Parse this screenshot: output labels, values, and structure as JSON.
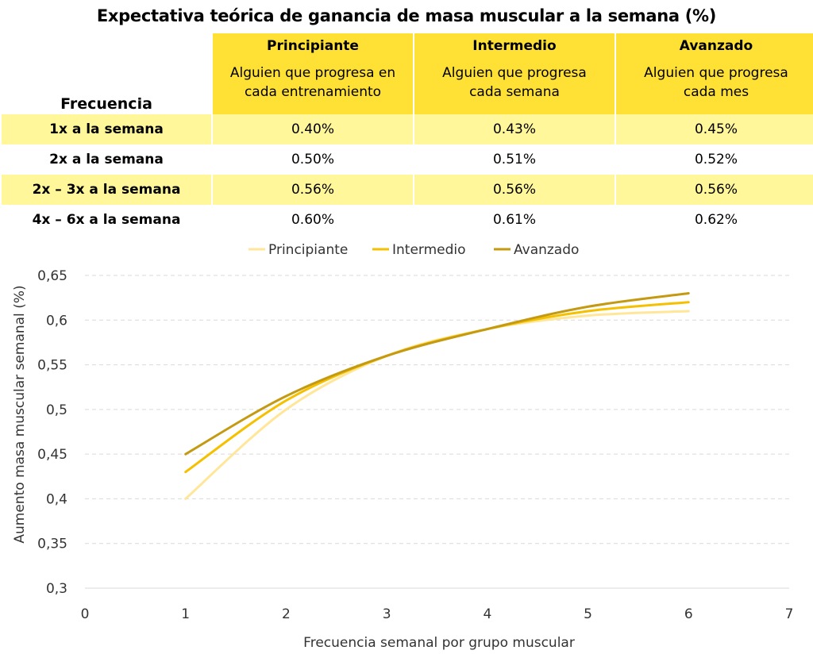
{
  "title": "Expectativa teórica de ganancia de masa muscular a la semana (%)",
  "table": {
    "corner": "Frecuencia",
    "levels": [
      {
        "name": "Principiante",
        "desc1": "Alguien que progresa en",
        "desc2": "cada entrenamiento"
      },
      {
        "name": "Intermedio",
        "desc1": "Alguien que progresa",
        "desc2": "cada semana"
      },
      {
        "name": "Avanzado",
        "desc1": "Alguien que progresa",
        "desc2": "cada mes"
      }
    ],
    "rows": [
      {
        "label": "1x a la semana",
        "values": [
          "0.40%",
          "0.43%",
          "0.45%"
        ]
      },
      {
        "label": "2x a la semana",
        "values": [
          "0.50%",
          "0.51%",
          "0.52%"
        ]
      },
      {
        "label": "2x – 3x a la semana",
        "values": [
          "0.56%",
          "0.56%",
          "0.56%"
        ]
      },
      {
        "label": "4x – 6x a la semana",
        "values": [
          "0.60%",
          "0.61%",
          "0.62%"
        ]
      }
    ]
  },
  "chart_data": {
    "type": "line",
    "xlabel": "Frecuencia semanal por grupo muscular",
    "ylabel": "Aumento masa muscular semanal (%)",
    "xlim": [
      0,
      7
    ],
    "ylim": [
      0.3,
      0.65
    ],
    "x_ticks": [
      "0",
      "1",
      "2",
      "3",
      "4",
      "5",
      "6",
      "7"
    ],
    "y_ticks": [
      "0,3",
      "0,35",
      "0,4",
      "0,45",
      "0,5",
      "0,55",
      "0,6",
      "0,65"
    ],
    "grid": "horizontal dashed",
    "legend_position": "top",
    "x": [
      1,
      2,
      3,
      4,
      5,
      6
    ],
    "series": [
      {
        "name": "Principiante",
        "color": "#ffe699",
        "values": [
          0.4,
          0.5,
          0.56,
          0.59,
          0.605,
          0.61
        ]
      },
      {
        "name": "Intermedio",
        "color": "#f5c000",
        "values": [
          0.43,
          0.51,
          0.56,
          0.59,
          0.61,
          0.62
        ]
      },
      {
        "name": "Avanzado",
        "color": "#c49a12",
        "values": [
          0.45,
          0.515,
          0.56,
          0.59,
          0.615,
          0.63
        ]
      }
    ]
  }
}
